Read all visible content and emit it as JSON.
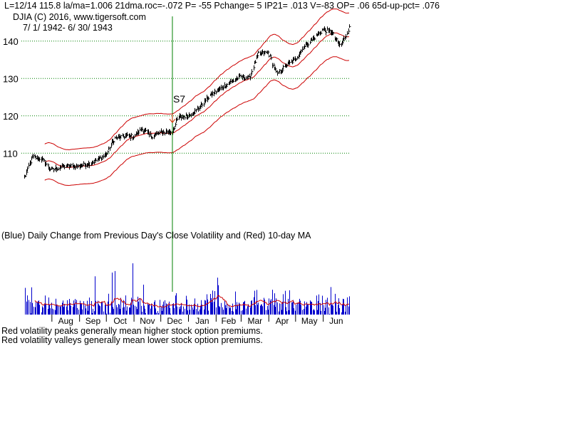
{
  "header": {
    "stats": "L=12/14  115.8  la/ma=1.006 21dma.roc=-.072 P= -55 Pchange=  5 IP21= .013 V=-83 OP= .06 65d-up-pct= .076",
    "symbol_line": "DJIA   (C) 2016, www.tigersoft.com",
    "date_range": "7/ 1/ 1942- 6/ 30/ 1943"
  },
  "colors": {
    "price": "#000000",
    "bands": "#cc0000",
    "grid": "#008000",
    "signal_line": "#008000",
    "signal_arrow": "#cc3300",
    "volatility_bars": "#0000cc",
    "volatility_ma": "#cc0000"
  },
  "chart_data": [
    {
      "type": "line",
      "name": "price",
      "ylim": [
        101,
        147
      ],
      "yticks": [
        110,
        120,
        130,
        140
      ],
      "grid": true,
      "x_dates": [
        "1942-07-01",
        "1943-06-30"
      ],
      "price_anchors": [
        [
          "1942-07-01",
          103.5
        ],
        [
          "1942-07-10",
          109
        ],
        [
          "1942-07-20",
          108.5
        ],
        [
          "1942-07-31",
          105.5
        ],
        [
          "1942-08-15",
          106.5
        ],
        [
          "1942-08-31",
          106.5
        ],
        [
          "1942-09-15",
          107.5
        ],
        [
          "1942-09-30",
          109.5
        ],
        [
          "1942-10-10",
          114
        ],
        [
          "1942-10-20",
          114.5
        ],
        [
          "1942-10-31",
          114.5
        ],
        [
          "1942-11-10",
          116.5
        ],
        [
          "1942-11-20",
          114.5
        ],
        [
          "1942-11-30",
          115.5
        ],
        [
          "1942-12-14",
          115.8
        ],
        [
          "1942-12-20",
          119.5
        ],
        [
          "1942-12-31",
          120
        ],
        [
          "1943-01-10",
          121.5
        ],
        [
          "1943-01-25",
          125.5
        ],
        [
          "1943-02-10",
          128
        ],
        [
          "1943-02-28",
          130.5
        ],
        [
          "1943-03-10",
          130
        ],
        [
          "1943-03-20",
          136.5
        ],
        [
          "1943-03-31",
          137
        ],
        [
          "1943-04-10",
          131
        ],
        [
          "1943-04-20",
          133.5
        ],
        [
          "1943-04-30",
          135
        ],
        [
          "1943-05-10",
          138.5
        ],
        [
          "1943-05-20",
          140.5
        ],
        [
          "1943-05-31",
          143
        ],
        [
          "1943-06-10",
          142.5
        ],
        [
          "1943-06-20",
          138.5
        ],
        [
          "1943-06-30",
          143.5
        ]
      ],
      "signal": {
        "date": "1942-12-14",
        "label": "S7",
        "price": 118.2
      }
    },
    {
      "type": "bar",
      "name": "volatility",
      "title": "(Blue) Daily Change from Previous Day's Close Volatility and (Red) 10-day MA",
      "months": [
        "Aug",
        "Sep",
        "Oct",
        "Nov",
        "Dec",
        "Jan",
        "Feb",
        "Mar",
        "Apr",
        "May",
        "Jun"
      ]
    }
  ],
  "notes": [
    "Red volatility peaks generally mean higher stock option premiums.",
    "Red volatility valleys generally mean lower stock option premiums."
  ]
}
